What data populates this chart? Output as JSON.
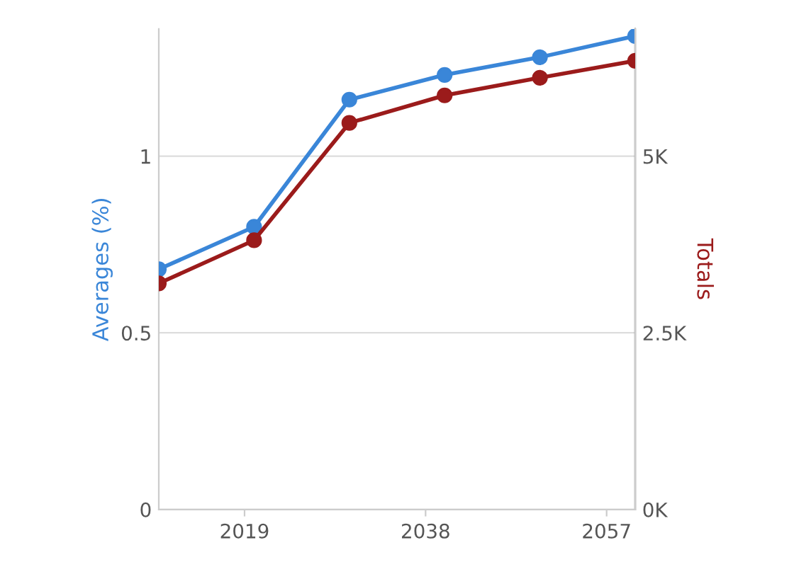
{
  "chart_data": {
    "type": "line",
    "xlabel": null,
    "ylabel": "Averages (%)",
    "y2label": "Totals",
    "x": [
      2010,
      2020,
      2030,
      2040,
      2050,
      2060
    ],
    "series": [
      {
        "color": "#3a86d8",
        "values": [
          0.68,
          0.8,
          1.16,
          1.23,
          1.28,
          1.34
        ]
      },
      {
        "color": "#9b1b1b",
        "axis": "y2",
        "values": [
          3200,
          3810,
          5470,
          5860,
          6110,
          6350
        ]
      }
    ],
    "xlim": [
      2010,
      2060
    ],
    "xticks": [
      2019,
      2038,
      2057
    ],
    "ylim": [
      0,
      1.36
    ],
    "yticks": [
      0,
      0.5,
      1
    ],
    "y2lim": [
      0,
      6800
    ],
    "y2ticks": [
      {
        "value": 0,
        "label": "0K"
      },
      {
        "value": 2500,
        "label": "2.5K"
      },
      {
        "value": 5000,
        "label": "5K"
      }
    ],
    "grid": "y",
    "marker": "circle",
    "line_style": "solid"
  }
}
